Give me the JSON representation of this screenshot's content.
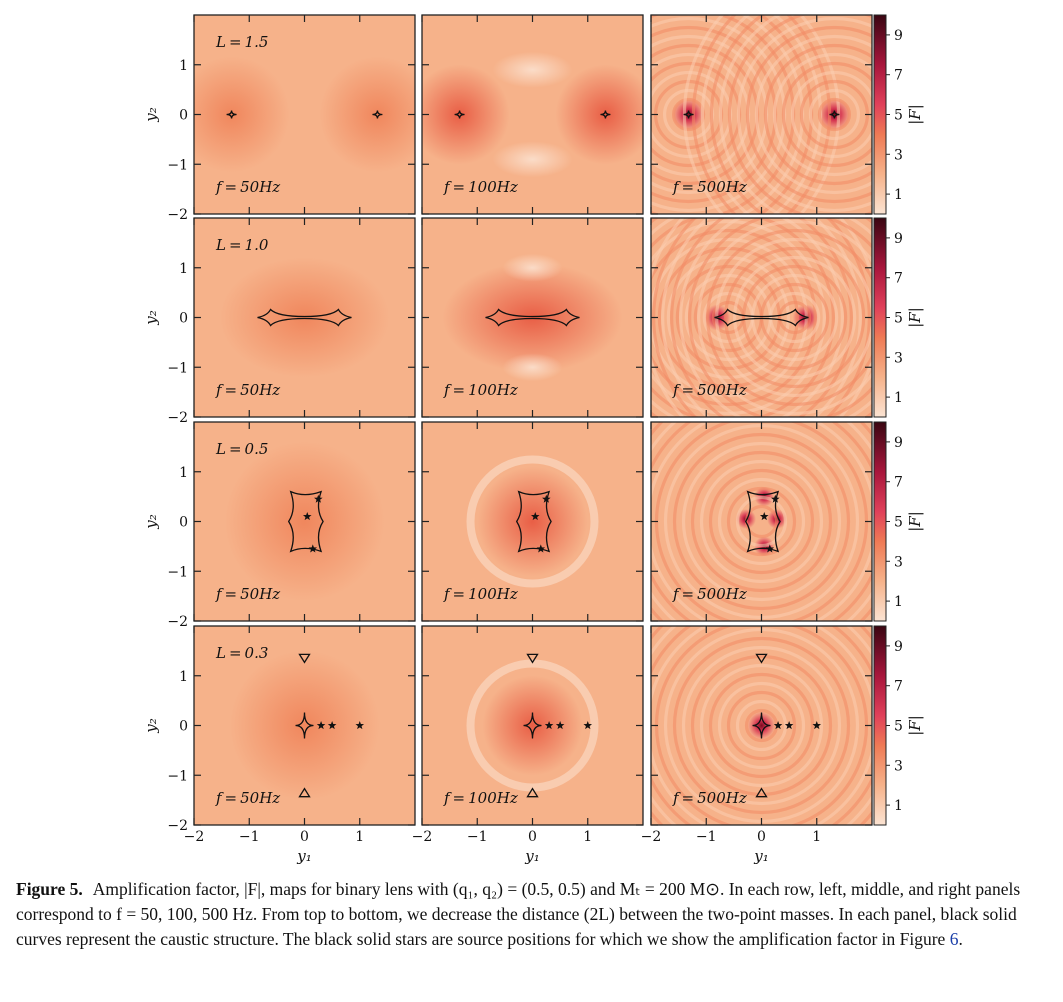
{
  "figure": {
    "rows": [
      {
        "L_label": "L = 1.5",
        "type": "points",
        "sep": 1.5,
        "f_labels": [
          "f = 50Hz",
          "f = 100Hz",
          "f = 500Hz"
        ]
      },
      {
        "L_label": "L = 1.0",
        "type": "bar",
        "sep": 1.0,
        "f_labels": [
          "f = 50Hz",
          "f = 100Hz",
          "f = 500Hz"
        ]
      },
      {
        "L_label": "L = 0.5",
        "type": "cross",
        "sep": 0.5,
        "f_labels": [
          "f = 50Hz",
          "f = 100Hz",
          "f = 500Hz"
        ]
      },
      {
        "L_label": "L = 0.3",
        "type": "central",
        "sep": 0.3,
        "f_labels": [
          "f = 50Hz",
          "f = 100Hz",
          "f = 500Hz"
        ]
      }
    ],
    "x_axis": {
      "label": "y₁",
      "ticks": [
        "−2",
        "−1",
        "0",
        "1"
      ]
    },
    "y_axis": {
      "label": "y₂",
      "ticks": [
        "1",
        "0",
        "−1",
        "−2"
      ]
    },
    "colorbar": {
      "label": "|F|",
      "ticks": [
        "9",
        "7",
        "5",
        "3",
        "1"
      ],
      "range": [
        0,
        10
      ]
    },
    "colors": {
      "background": "#f6b28a",
      "high": "#e0405a",
      "peak": "#6b0a1a",
      "line": "#111111"
    }
  },
  "caption": {
    "label": "Figure 5.",
    "text": "Amplification factor, |F|, maps for binary lens with (q₁, q₂) = (0.5, 0.5) and Mₜ = 200 M⊙. In each row, left, middle, and right panels correspond to f = 50, 100, 500 Hz. From top to bottom, we decrease the distance (2L) between the two-point masses. In each panel, black solid curves represent the caustic structure. The black solid stars are source positions for which we show the amplification factor in Figure",
    "ref": "6",
    "end": "."
  }
}
